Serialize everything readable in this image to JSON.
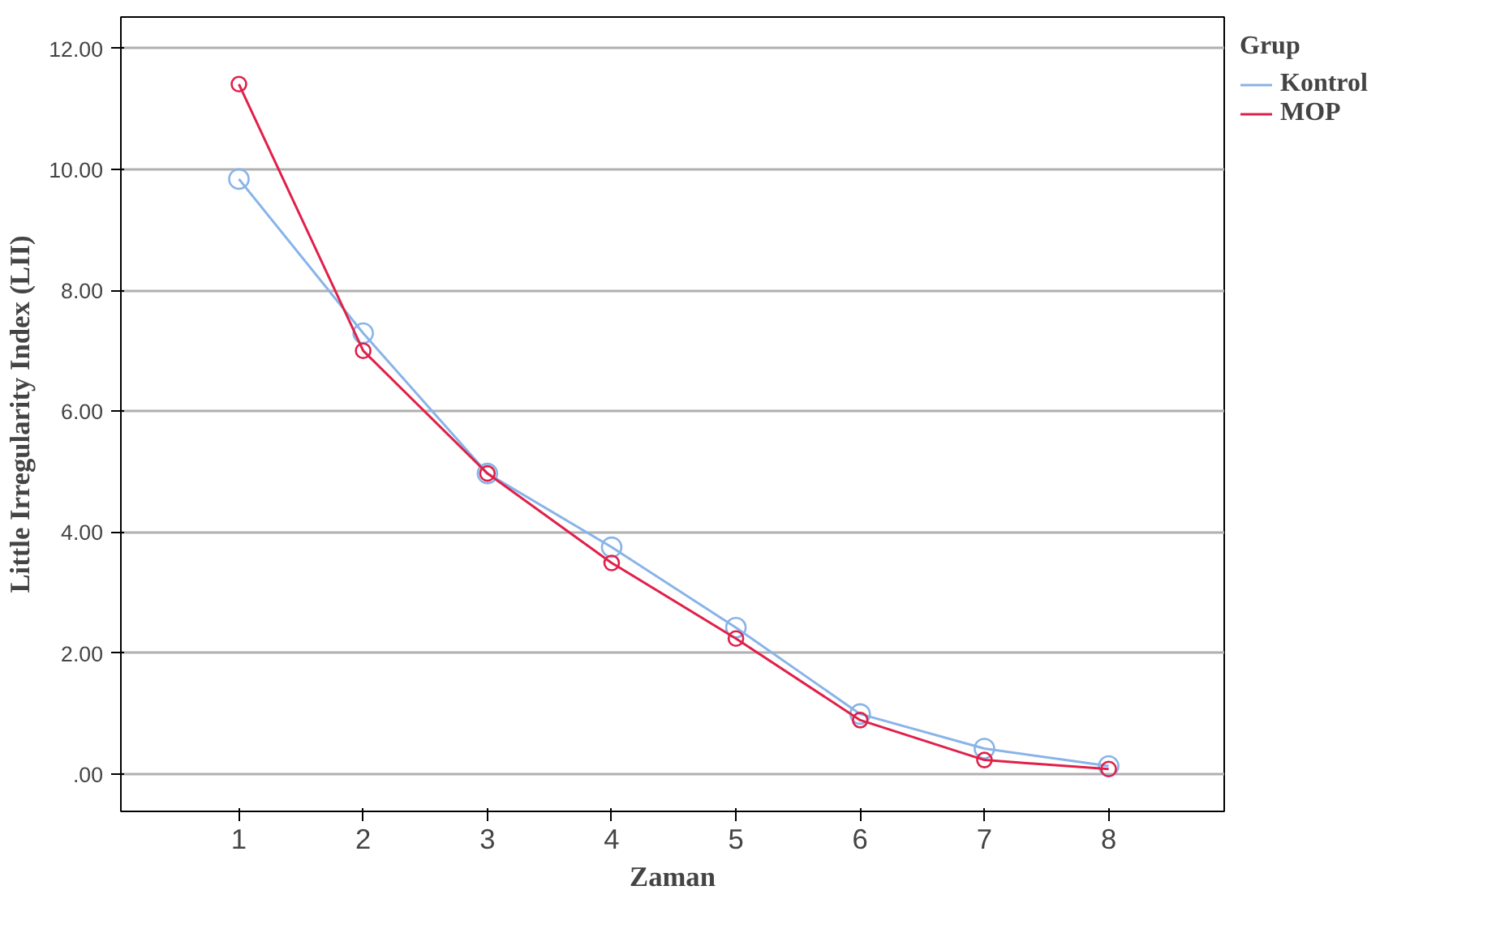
{
  "chart_data": {
    "type": "line",
    "xlabel": "Zaman",
    "ylabel": "Little Irregularity Index (LII)",
    "legend_title": "Grup",
    "x": [
      1,
      2,
      3,
      4,
      5,
      6,
      7,
      8
    ],
    "series": [
      {
        "name": "Kontrol",
        "color": "#88b4e8",
        "values": [
          9.84,
          7.29,
          4.97,
          3.75,
          2.42,
          0.99,
          0.42,
          0.13
        ]
      },
      {
        "name": "MOP",
        "color": "#e0204a",
        "values": [
          11.41,
          7.0,
          4.97,
          3.49,
          2.24,
          0.89,
          0.23,
          0.08
        ]
      }
    ],
    "xlim": [
      0.05,
      8.93
    ],
    "xticks": [
      1,
      2,
      3,
      4,
      5,
      6,
      7,
      8
    ],
    "ylim": [
      -0.62,
      12.52
    ],
    "yticks": [
      {
        "value": 0,
        "label": ".00"
      },
      {
        "value": 2,
        "label": "2.00"
      },
      {
        "value": 4,
        "label": "4.00"
      },
      {
        "value": 6,
        "label": "6.00"
      },
      {
        "value": 8,
        "label": "8.00"
      },
      {
        "value": 10,
        "label": "10.00"
      },
      {
        "value": 12,
        "label": "12.00"
      }
    ],
    "grid": "y",
    "legend": "top right",
    "marker": "circle",
    "line_style": "solid"
  }
}
